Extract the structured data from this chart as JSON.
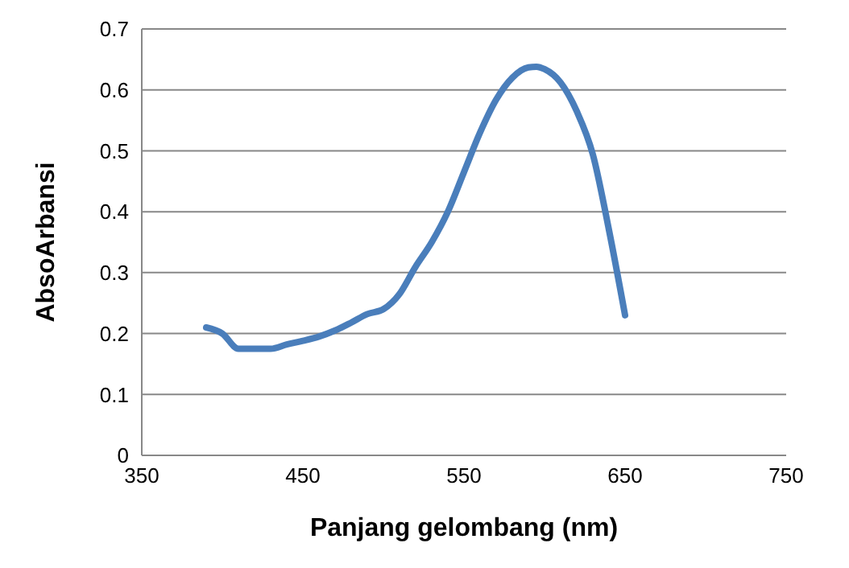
{
  "chart_data": {
    "type": "line",
    "xlabel": "Panjang gelombang (nm)",
    "ylabel": "AbsoArbansi",
    "x": [
      390,
      400,
      410,
      420,
      430,
      440,
      450,
      460,
      470,
      480,
      490,
      500,
      510,
      520,
      530,
      540,
      550,
      560,
      570,
      580,
      590,
      595,
      600,
      610,
      620,
      630,
      640,
      650
    ],
    "series": [
      {
        "color": "#4a7ebb",
        "values": [
          0.21,
          0.2,
          0.175,
          0.175,
          0.175,
          0.182,
          0.188,
          0.195,
          0.205,
          0.218,
          0.232,
          0.24,
          0.265,
          0.31,
          0.35,
          0.4,
          0.465,
          0.53,
          0.584,
          0.62,
          0.637,
          0.638,
          0.634,
          0.612,
          0.565,
          0.494,
          0.37,
          0.23
        ]
      }
    ],
    "xlim": [
      350,
      750
    ],
    "xticks": [
      350,
      450,
      550,
      650,
      750
    ],
    "ylim": [
      0,
      0.7
    ],
    "yticks": [
      0,
      0.1,
      0.2,
      0.3,
      0.4,
      0.5,
      0.6,
      0.7
    ],
    "grid": "y",
    "marker": "none",
    "line_style": "solid"
  }
}
